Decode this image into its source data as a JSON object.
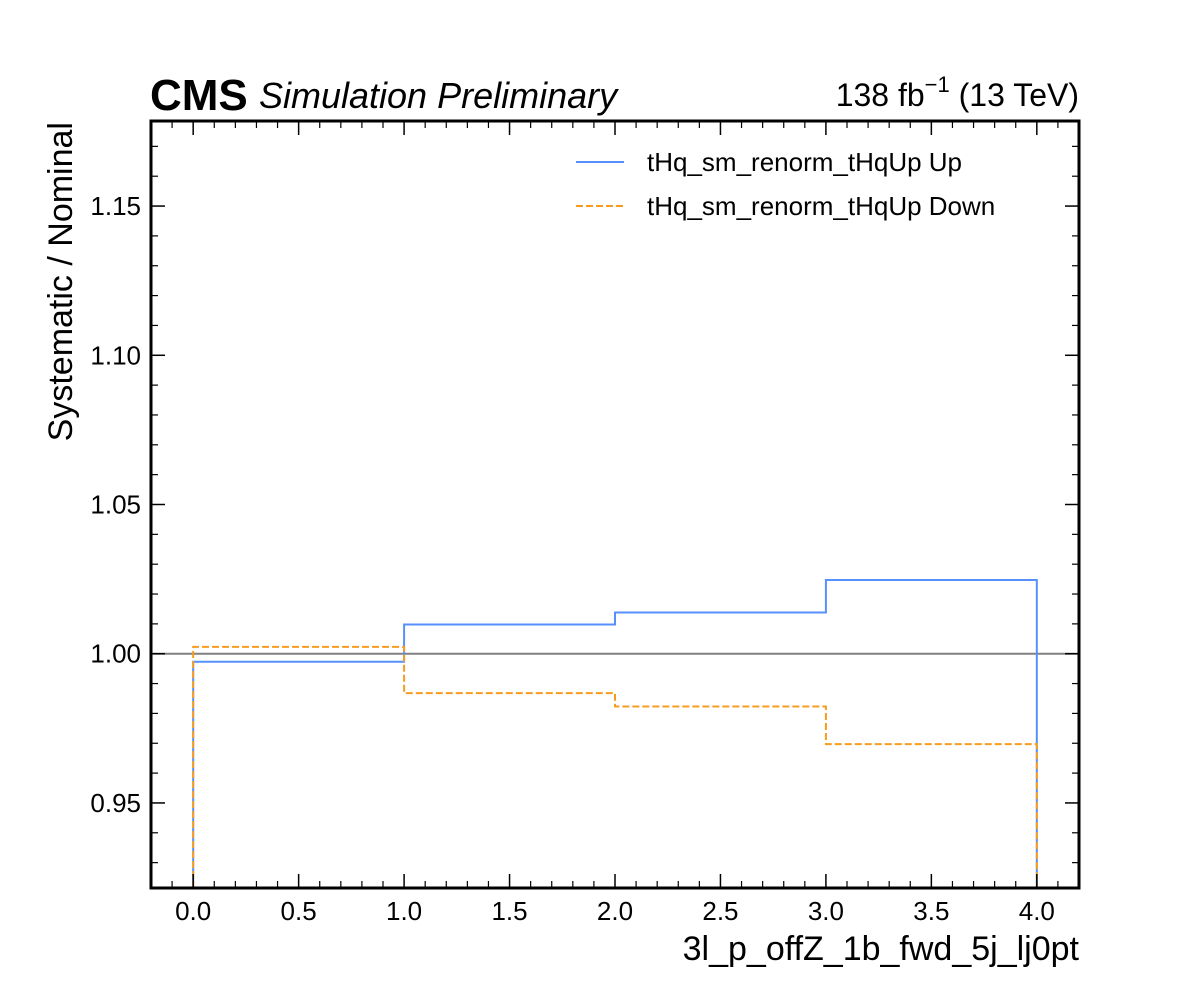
{
  "chart_data": {
    "type": "line",
    "style": "step-histogram",
    "experiment": "CMS",
    "experiment_label": "Simulation Preliminary",
    "lumi_value": "138 fb",
    "lumi_exponent": "−1",
    "lumi_energy": " (13 TeV)",
    "xlabel": "3l_p_offZ_1b_fwd_5j_lj0pt",
    "ylabel": "Systematic / Nominal",
    "xlim": [
      -0.2,
      4.2
    ],
    "ylim": [
      0.9215,
      1.1785
    ],
    "x_ticks": [
      0.0,
      0.5,
      1.0,
      1.5,
      2.0,
      2.5,
      3.0,
      3.5,
      4.0
    ],
    "x_tick_labels": [
      "0.0",
      "0.5",
      "1.0",
      "1.5",
      "2.0",
      "2.5",
      "3.0",
      "3.5",
      "4.0"
    ],
    "y_ticks": [
      0.95,
      1.0,
      1.05,
      1.1,
      1.15
    ],
    "y_tick_labels": [
      "0.95",
      "1.00",
      "1.05",
      "1.10",
      "1.15"
    ],
    "reference_line": 1.0,
    "bin_edges": [
      0,
      1,
      2,
      3,
      4
    ],
    "series": [
      {
        "name": "tHq_sm_renorm_tHqUp Up",
        "values": [
          0.9973,
          1.0098,
          1.0138,
          1.0247
        ],
        "color": "#5790fc",
        "dashed": false
      },
      {
        "name": "tHq_sm_renorm_tHqUp Down",
        "values": [
          1.0023,
          0.9868,
          0.9823,
          0.9697
        ],
        "color": "#f89c20",
        "dashed": true
      }
    ],
    "legend_position": "top-right",
    "grid": false
  }
}
